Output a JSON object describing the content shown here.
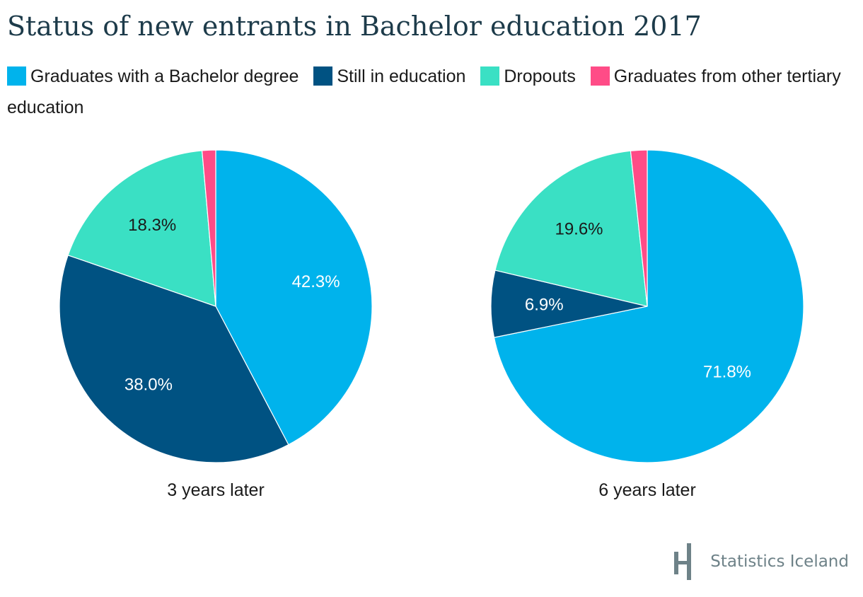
{
  "title": "Status of new entrants in Bachelor education 2017",
  "brand": {
    "name": "Statistics Iceland",
    "logo_icon": "statistics-iceland-logo-icon"
  },
  "chart_data": {
    "type": "pie",
    "categories": [
      "Graduates with a Bachelor degree",
      "Still in education",
      "Dropouts",
      "Graduates from other tertiary education"
    ],
    "colors": [
      "#00b3ec",
      "#005282",
      "#3ae0c4",
      "#ff4c87"
    ],
    "legend_position": "top",
    "charts": [
      {
        "label": "3 years later",
        "values": [
          42.3,
          38.0,
          18.3,
          1.4
        ],
        "data_labels": [
          "42.3%",
          "38.0%",
          "18.3%",
          ""
        ]
      },
      {
        "label": "6 years later",
        "values": [
          71.8,
          6.9,
          19.6,
          1.7
        ],
        "data_labels": [
          "71.8%",
          "6.9%",
          "19.6%",
          ""
        ]
      }
    ]
  }
}
